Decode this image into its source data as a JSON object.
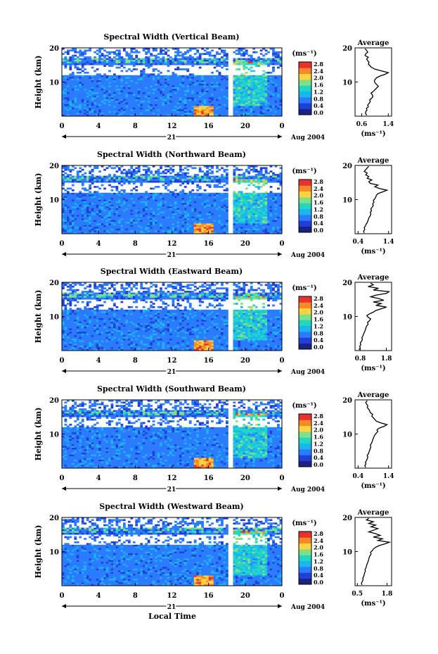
{
  "chart_data": [
    {
      "type": "heatmap",
      "title": "Spectral Width (Vertical Beam)",
      "ylabel": "Height (km)",
      "xticks": [
        "0",
        "4",
        "8",
        "12",
        "16",
        "20",
        "0"
      ],
      "yticks": [
        "10",
        "20"
      ],
      "ylim": [
        0,
        20
      ],
      "xlim": [
        0,
        24
      ],
      "day_label": "21",
      "date_label": "Aug 2004",
      "cbar_unit": "(ms⁻¹)",
      "cbar_ticks": [
        "0.0",
        "0.4",
        "0.8",
        "1.2",
        "1.6",
        "2.0",
        "2.4",
        "2.8"
      ],
      "avg": {
        "title": "Average",
        "xticks": [
          "0.6",
          "1.4"
        ],
        "xunit": "(ms⁻¹)",
        "ytick_labels": [
          "10",
          "20"
        ],
        "xlim": [
          0.4,
          1.5
        ],
        "profile": [
          0.75,
          0.72,
          0.72,
          0.76,
          0.74,
          0.8,
          0.78,
          0.82,
          0.86,
          0.84,
          0.9,
          0.94,
          0.92,
          0.88,
          0.95,
          1.0,
          1.05,
          1.1,
          1.05,
          1.0,
          0.98,
          1.0,
          1.05,
          1.15,
          1.3,
          1.4,
          1.2,
          1.0,
          0.9,
          0.85,
          0.8,
          0.82,
          0.78,
          0.75,
          0.8,
          0.7,
          0.72,
          0.78,
          0.75,
          0.7
        ]
      }
    },
    {
      "type": "heatmap",
      "title": "Spectral Width (Northward Beam)",
      "ylabel": "Height (km)",
      "xticks": [
        "0",
        "4",
        "8",
        "12",
        "16",
        "20",
        "0"
      ],
      "yticks": [
        "10",
        "20"
      ],
      "ylim": [
        0,
        20
      ],
      "xlim": [
        0,
        24
      ],
      "day_label": "21",
      "date_label": "Aug 2004",
      "cbar_unit": "(ms⁻¹)",
      "cbar_ticks": [
        "0.0",
        "0.4",
        "0.8",
        "1.2",
        "1.6",
        "2.0",
        "2.4",
        "2.8"
      ],
      "avg": {
        "title": "Average",
        "xticks": [
          "0.4",
          "1.4"
        ],
        "xunit": "(ms⁻¹)",
        "ytick_labels": [
          "10",
          "20"
        ],
        "xlim": [
          0.3,
          1.5
        ],
        "profile": [
          0.6,
          0.58,
          0.62,
          0.6,
          0.64,
          0.66,
          0.7,
          0.72,
          0.74,
          0.76,
          0.8,
          0.82,
          0.8,
          0.84,
          0.82,
          0.86,
          0.9,
          0.88,
          0.92,
          0.9,
          0.95,
          0.98,
          1.0,
          1.05,
          1.2,
          1.35,
          1.1,
          0.95,
          1.05,
          0.8,
          0.75,
          0.85,
          0.7,
          0.75,
          0.65,
          0.7,
          0.6,
          0.65,
          0.7,
          0.75
        ]
      }
    },
    {
      "type": "heatmap",
      "title": "Spectral Width (Eastward Beam)",
      "ylabel": "Height (km)",
      "xticks": [
        "0",
        "4",
        "8",
        "12",
        "16",
        "20",
        "0"
      ],
      "yticks": [
        "10",
        "20"
      ],
      "ylim": [
        0,
        20
      ],
      "xlim": [
        0,
        24
      ],
      "day_label": "21",
      "date_label": "Aug 2004",
      "cbar_unit": "(ms⁻¹)",
      "cbar_ticks": [
        "0.0",
        "0.4",
        "0.8",
        "1.2",
        "1.6",
        "2.0",
        "2.4",
        "2.8"
      ],
      "avg": {
        "title": "Average",
        "xticks": [
          "0.8",
          "1.8"
        ],
        "xunit": "(ms⁻¹)",
        "ytick_labels": [
          "10",
          "20"
        ],
        "xlim": [
          0.6,
          2.0
        ],
        "profile": [
          0.75,
          0.8,
          0.78,
          0.82,
          0.8,
          0.85,
          0.88,
          0.86,
          0.9,
          0.92,
          0.95,
          0.98,
          1.0,
          1.02,
          1.05,
          1.1,
          1.08,
          1.15,
          1.2,
          1.1,
          1.05,
          1.15,
          1.3,
          1.4,
          1.6,
          1.8,
          1.4,
          1.6,
          1.3,
          1.7,
          1.5,
          1.2,
          1.4,
          1.8,
          1.9,
          1.3,
          1.5,
          1.1,
          1.3,
          1.2
        ]
      }
    },
    {
      "type": "heatmap",
      "title": "Spectral Width (Southward Beam)",
      "ylabel": "Height (km)",
      "xticks": [
        "0",
        "4",
        "8",
        "12",
        "16",
        "20",
        "0"
      ],
      "yticks": [
        "10",
        "20"
      ],
      "ylim": [
        0,
        20
      ],
      "xlim": [
        0,
        24
      ],
      "day_label": "21",
      "date_label": "Aug 2004",
      "cbar_unit": "(ms⁻¹)",
      "cbar_ticks": [
        "0.0",
        "0.4",
        "0.8",
        "1.2",
        "1.6",
        "2.0",
        "2.4",
        "2.8"
      ],
      "avg": {
        "title": "Average",
        "xticks": [
          "0.4",
          "1.4"
        ],
        "xunit": "(ms⁻¹)",
        "ytick_labels": [
          "10",
          "20"
        ],
        "xlim": [
          0.3,
          1.5
        ],
        "profile": [
          0.65,
          0.62,
          0.66,
          0.64,
          0.68,
          0.7,
          0.72,
          0.7,
          0.74,
          0.76,
          0.78,
          0.8,
          0.82,
          0.8,
          0.84,
          0.86,
          0.88,
          0.9,
          0.92,
          0.95,
          1.0,
          1.05,
          1.02,
          1.1,
          1.25,
          1.35,
          1.15,
          1.0,
          0.95,
          0.9,
          0.85,
          0.88,
          0.8,
          0.78,
          0.75,
          0.7,
          0.72,
          0.68,
          0.65,
          0.7
        ]
      }
    },
    {
      "type": "heatmap",
      "title": "Spectral Width (Westward Beam)",
      "ylabel": "Height (km)",
      "xticks": [
        "0",
        "4",
        "8",
        "12",
        "16",
        "20",
        "0"
      ],
      "yticks": [
        "10",
        "20"
      ],
      "ylim": [
        0,
        20
      ],
      "xlim": [
        0,
        24
      ],
      "day_label": "21",
      "date_label": "Aug 2004",
      "cbar_unit": "(ms⁻¹)",
      "cbar_ticks": [
        "0.0",
        "0.4",
        "0.8",
        "1.2",
        "1.6",
        "2.0",
        "2.4",
        "2.8"
      ],
      "avg": {
        "title": "Average",
        "xticks": [
          "0.5",
          "1.8"
        ],
        "xunit": "(ms⁻¹)",
        "ytick_labels": [
          "10",
          "20"
        ],
        "xlim": [
          0.4,
          2.0
        ],
        "profile": [
          0.7,
          0.68,
          0.72,
          0.75,
          0.74,
          0.78,
          0.8,
          0.82,
          0.85,
          0.84,
          0.88,
          0.9,
          0.92,
          0.95,
          0.98,
          1.0,
          1.02,
          1.05,
          1.1,
          1.08,
          1.15,
          1.2,
          1.3,
          1.45,
          1.7,
          1.9,
          1.4,
          1.6,
          1.2,
          1.5,
          1.3,
          1.0,
          1.2,
          1.4,
          1.1,
          1.3,
          1.0,
          1.2,
          0.9,
          1.0
        ]
      }
    }
  ],
  "xlabel": "Local Time",
  "colors": {
    "scale": [
      "#1a237e",
      "#1f3fd8",
      "#2b7bff",
      "#19b6f0",
      "#22d6c4",
      "#7fe08a",
      "#ffd23f",
      "#f48b28",
      "#e8322b"
    ]
  }
}
